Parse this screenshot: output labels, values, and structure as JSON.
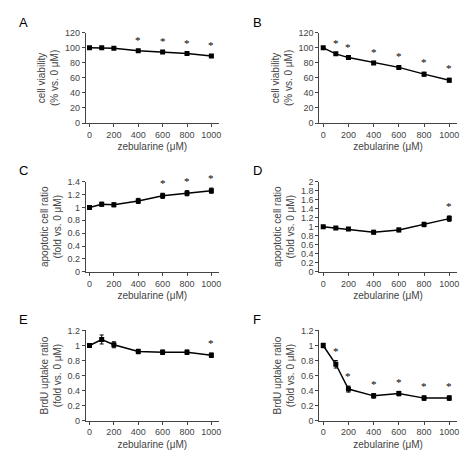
{
  "chart_data": [
    {
      "type": "line",
      "title": "A",
      "x": [
        0,
        100,
        200,
        400,
        600,
        800,
        1000
      ],
      "values": [
        100,
        100,
        99.5,
        96,
        94.5,
        92.5,
        89
      ],
      "yerr": [
        0.5,
        0.8,
        0.8,
        1.0,
        1.0,
        1.2,
        1.5
      ],
      "xlabel": "zebularine (μM)",
      "ylabel": "cell viability\n(% vs. 0 μM)",
      "xlim": [
        -30,
        1060
      ],
      "xticks": [
        0,
        200,
        400,
        600,
        800,
        1000
      ],
      "ylim": [
        0,
        120
      ],
      "yticks": [
        0,
        20,
        40,
        60,
        80,
        100,
        120
      ],
      "color": "#000000",
      "marker": "square",
      "line_style": "solid",
      "grid": false,
      "annotations": [
        {
          "x": 400,
          "text": "*"
        },
        {
          "x": 600,
          "text": "*"
        },
        {
          "x": 800,
          "text": "*"
        },
        {
          "x": 1000,
          "text": "*"
        }
      ]
    },
    {
      "type": "line",
      "title": "B",
      "x": [
        0,
        100,
        200,
        400,
        600,
        800,
        1000
      ],
      "values": [
        100,
        92,
        87,
        80,
        74,
        65,
        57
      ],
      "yerr": [
        0.5,
        1.5,
        1.5,
        2.0,
        2.0,
        2.5,
        2.5
      ],
      "xlabel": "zebularine (μM)",
      "ylabel": "cell viability\n(% vs. 0 μM)",
      "xlim": [
        -30,
        1060
      ],
      "xticks": [
        0,
        200,
        400,
        600,
        800,
        1000
      ],
      "ylim": [
        0,
        120
      ],
      "yticks": [
        0,
        20,
        40,
        60,
        80,
        100,
        120
      ],
      "color": "#000000",
      "marker": "square",
      "line_style": "solid",
      "grid": false,
      "annotations": [
        {
          "x": 100,
          "text": "*"
        },
        {
          "x": 200,
          "text": "*"
        },
        {
          "x": 400,
          "text": "*"
        },
        {
          "x": 600,
          "text": "*"
        },
        {
          "x": 800,
          "text": "*"
        },
        {
          "x": 1000,
          "text": "*"
        }
      ]
    },
    {
      "type": "line",
      "title": "C",
      "x": [
        0,
        100,
        200,
        400,
        600,
        800,
        1000
      ],
      "values": [
        1.0,
        1.05,
        1.04,
        1.1,
        1.18,
        1.22,
        1.26
      ],
      "yerr": [
        0.02,
        0.03,
        0.03,
        0.04,
        0.04,
        0.04,
        0.04
      ],
      "xlabel": "zebularine (μM)",
      "ylabel": "apoptotic cell ratio\n(fold vs. 0 μM)",
      "xlim": [
        -30,
        1060
      ],
      "xticks": [
        0,
        200,
        400,
        600,
        800,
        1000
      ],
      "ylim": [
        0,
        1.4
      ],
      "yticks": [
        0,
        0.2,
        0.4,
        0.6,
        0.8,
        1,
        1.2,
        1.4
      ],
      "color": "#000000",
      "marker": "square",
      "line_style": "solid",
      "grid": false,
      "annotations": [
        {
          "x": 600,
          "text": "*"
        },
        {
          "x": 800,
          "text": "*"
        },
        {
          "x": 1000,
          "text": "*"
        }
      ]
    },
    {
      "type": "line",
      "title": "D",
      "x": [
        0,
        100,
        200,
        400,
        600,
        800,
        1000
      ],
      "values": [
        1.0,
        0.97,
        0.95,
        0.88,
        0.93,
        1.05,
        1.18
      ],
      "yerr": [
        0.02,
        0.03,
        0.03,
        0.04,
        0.04,
        0.05,
        0.06
      ],
      "xlabel": "zebularine (μM)",
      "ylabel": "apoptotic cell ratio\n(fold vs. 0 μM)",
      "xlim": [
        -30,
        1060
      ],
      "xticks": [
        0,
        200,
        400,
        600,
        800,
        1000
      ],
      "ylim": [
        0,
        2.0
      ],
      "yticks": [
        0,
        0.2,
        0.4,
        0.6,
        0.8,
        1,
        1.2,
        1.4,
        1.6,
        1.8,
        2
      ],
      "color": "#000000",
      "marker": "square",
      "line_style": "solid",
      "grid": false,
      "annotations": [
        {
          "x": 1000,
          "text": "*"
        }
      ]
    },
    {
      "type": "line",
      "title": "E",
      "x": [
        0,
        100,
        200,
        400,
        600,
        800,
        1000
      ],
      "values": [
        1.0,
        1.08,
        1.01,
        0.92,
        0.91,
        0.91,
        0.87
      ],
      "yerr": [
        0.02,
        0.06,
        0.04,
        0.03,
        0.03,
        0.03,
        0.03
      ],
      "xlabel": "zebularine (μM)",
      "ylabel": "BrdU uptake ratio\n(fold vs. 0 μM)",
      "xlim": [
        -30,
        1060
      ],
      "xticks": [
        0,
        200,
        400,
        600,
        800,
        1000
      ],
      "ylim": [
        0,
        1.2
      ],
      "yticks": [
        0,
        0.2,
        0.4,
        0.6,
        0.8,
        1,
        1.2
      ],
      "color": "#000000",
      "marker": "square",
      "line_style": "solid",
      "grid": false,
      "annotations": [
        {
          "x": 1000,
          "text": "*"
        }
      ]
    },
    {
      "type": "line",
      "title": "F",
      "x": [
        0,
        100,
        200,
        400,
        600,
        800,
        1000
      ],
      "values": [
        1.0,
        0.75,
        0.42,
        0.33,
        0.36,
        0.3,
        0.3
      ],
      "yerr": [
        0.03,
        0.05,
        0.04,
        0.03,
        0.03,
        0.03,
        0.03
      ],
      "xlabel": "zebularine (μM)",
      "ylabel": "BrdU uptake ratio\n(fold vs. 0 μM)",
      "xlim": [
        -30,
        1060
      ],
      "xticks": [
        0,
        200,
        400,
        600,
        800,
        1000
      ],
      "ylim": [
        0,
        1.2
      ],
      "yticks": [
        0,
        0.2,
        0.4,
        0.6,
        0.8,
        1,
        1.2
      ],
      "color": "#000000",
      "marker": "square",
      "line_style": "solid",
      "grid": false,
      "annotations": [
        {
          "x": 100,
          "text": "*"
        },
        {
          "x": 200,
          "text": "*"
        },
        {
          "x": 400,
          "text": "*"
        },
        {
          "x": 600,
          "text": "*"
        },
        {
          "x": 800,
          "text": "*"
        },
        {
          "x": 1000,
          "text": "*"
        }
      ]
    }
  ]
}
